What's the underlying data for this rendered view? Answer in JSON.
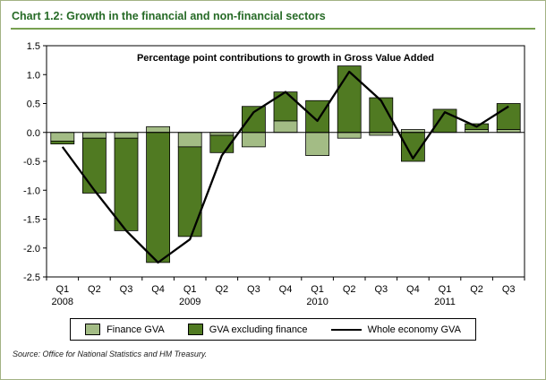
{
  "header": {
    "title": "Chart 1.2: Growth in the financial and non-financial sectors"
  },
  "source_note": "Source: Office for National Statistics and HM Treasury.",
  "colors": {
    "header_green": "#266a26",
    "rule_green": "#78a050",
    "card_border": "#a3b284",
    "bar_dark_green": "#507a22",
    "bar_light_green": "#a3bc85",
    "line_black": "#000000"
  },
  "legend": {
    "items": [
      {
        "label": "Finance GVA",
        "swatch": "box",
        "color": "#a3bc85"
      },
      {
        "label": "GVA excluding finance",
        "swatch": "box",
        "color": "#507a22"
      },
      {
        "label": "Whole economy GVA",
        "swatch": "line",
        "color": "#000000"
      }
    ]
  },
  "chart_data": {
    "type": "bar",
    "stacked": true,
    "title": "Percentage point contributions to growth in Gross Value Added",
    "grid": false,
    "legend_position": "bottom",
    "ylim": [
      -2.5,
      1.5
    ],
    "ytick_step": 0.5,
    "categories": [
      "Q1",
      "Q2",
      "Q3",
      "Q4",
      "Q1",
      "Q2",
      "Q3",
      "Q4",
      "Q1",
      "Q2",
      "Q3",
      "Q4",
      "Q1",
      "Q2",
      "Q3"
    ],
    "year_labels": [
      {
        "index": 0,
        "label": "2008"
      },
      {
        "index": 4,
        "label": "2009"
      },
      {
        "index": 8,
        "label": "2010"
      },
      {
        "index": 12,
        "label": "2011"
      }
    ],
    "series": [
      {
        "name": "Finance GVA",
        "color": "#a3bc85",
        "values": [
          -0.15,
          -0.1,
          -0.1,
          0.1,
          -0.25,
          -0.05,
          -0.25,
          0.2,
          -0.4,
          -0.1,
          -0.05,
          0.05,
          0.0,
          0.05,
          0.05
        ]
      },
      {
        "name": "GVA excluding finance",
        "color": "#507a22",
        "values": [
          -0.05,
          -0.95,
          -1.6,
          -2.25,
          -1.55,
          -0.3,
          0.45,
          0.5,
          0.55,
          1.15,
          0.6,
          -0.5,
          0.4,
          0.1,
          0.45
        ]
      }
    ],
    "line": {
      "name": "Whole economy GVA",
      "color": "#000000",
      "values": [
        -0.25,
        -1.0,
        -1.7,
        -2.25,
        -1.85,
        -0.4,
        0.35,
        0.7,
        0.2,
        1.05,
        0.55,
        -0.45,
        0.35,
        0.1,
        0.45
      ]
    }
  }
}
